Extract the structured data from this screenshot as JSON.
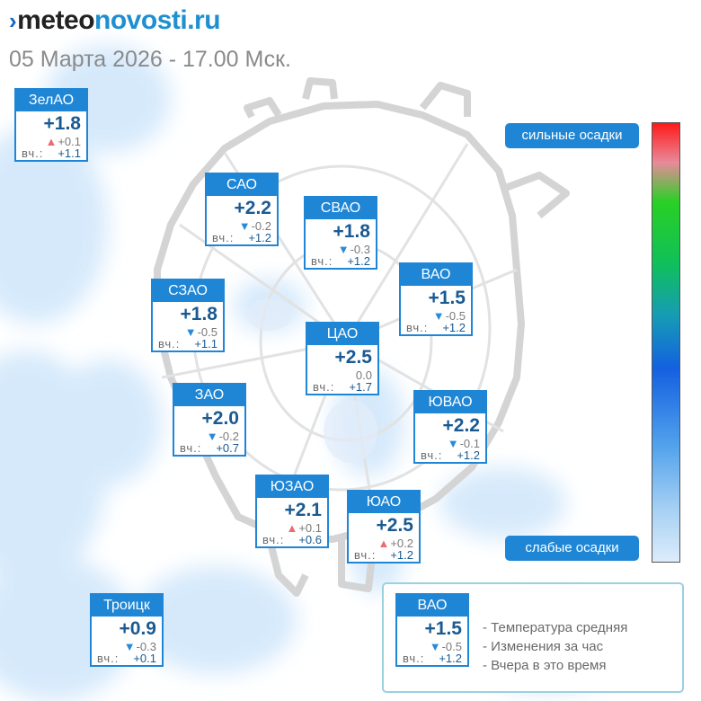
{
  "brand": {
    "part1": "meteo",
    "part2": "novosti",
    "part3": ".ru"
  },
  "date": "05 Марта 2026 - 17.00 Мск.",
  "yesterday_label": "вч.:",
  "scale": {
    "high_label": "сильные осадки",
    "low_label": "слабые осадки"
  },
  "colors": {
    "card_header": "#1f86d6",
    "temperature": "#1a5a92",
    "trend_down": "#2a8ad8",
    "trend_up": "#ec6b72"
  },
  "districts": [
    {
      "name": "ЗелАО",
      "temp": "+1.8",
      "change": "+0.1",
      "trend": "up",
      "yesterday": "+1.1"
    },
    {
      "name": "САО",
      "temp": "+2.2",
      "change": "-0.2",
      "trend": "down",
      "yesterday": "+1.2"
    },
    {
      "name": "СВАО",
      "temp": "+1.8",
      "change": "-0.3",
      "trend": "down",
      "yesterday": "+1.2"
    },
    {
      "name": "ВАО",
      "temp": "+1.5",
      "change": "-0.5",
      "trend": "down",
      "yesterday": "+1.2"
    },
    {
      "name": "СЗАО",
      "temp": "+1.8",
      "change": "-0.5",
      "trend": "down",
      "yesterday": "+1.1"
    },
    {
      "name": "ЦАО",
      "temp": "+2.5",
      "change": "0.0",
      "trend": "none",
      "yesterday": "+1.7"
    },
    {
      "name": "ЗАО",
      "temp": "+2.0",
      "change": "-0.2",
      "trend": "down",
      "yesterday": "+0.7"
    },
    {
      "name": "ЮВАО",
      "temp": "+2.2",
      "change": "-0.1",
      "trend": "down",
      "yesterday": "+1.2"
    },
    {
      "name": "ЮЗАО",
      "temp": "+2.1",
      "change": "+0.1",
      "trend": "up",
      "yesterday": "+0.6"
    },
    {
      "name": "ЮАО",
      "temp": "+2.5",
      "change": "+0.2",
      "trend": "up",
      "yesterday": "+1.2"
    },
    {
      "name": "Троицк",
      "temp": "+0.9",
      "change": "-0.3",
      "trend": "down",
      "yesterday": "+0.1"
    }
  ],
  "legend": {
    "example": {
      "name": "ВАО",
      "temp": "+1.5",
      "change": "-0.5",
      "trend": "down",
      "yesterday": "+1.2"
    },
    "lines": [
      "- Температура средняя",
      "- Изменения за час",
      "- Вчера в это время"
    ]
  }
}
